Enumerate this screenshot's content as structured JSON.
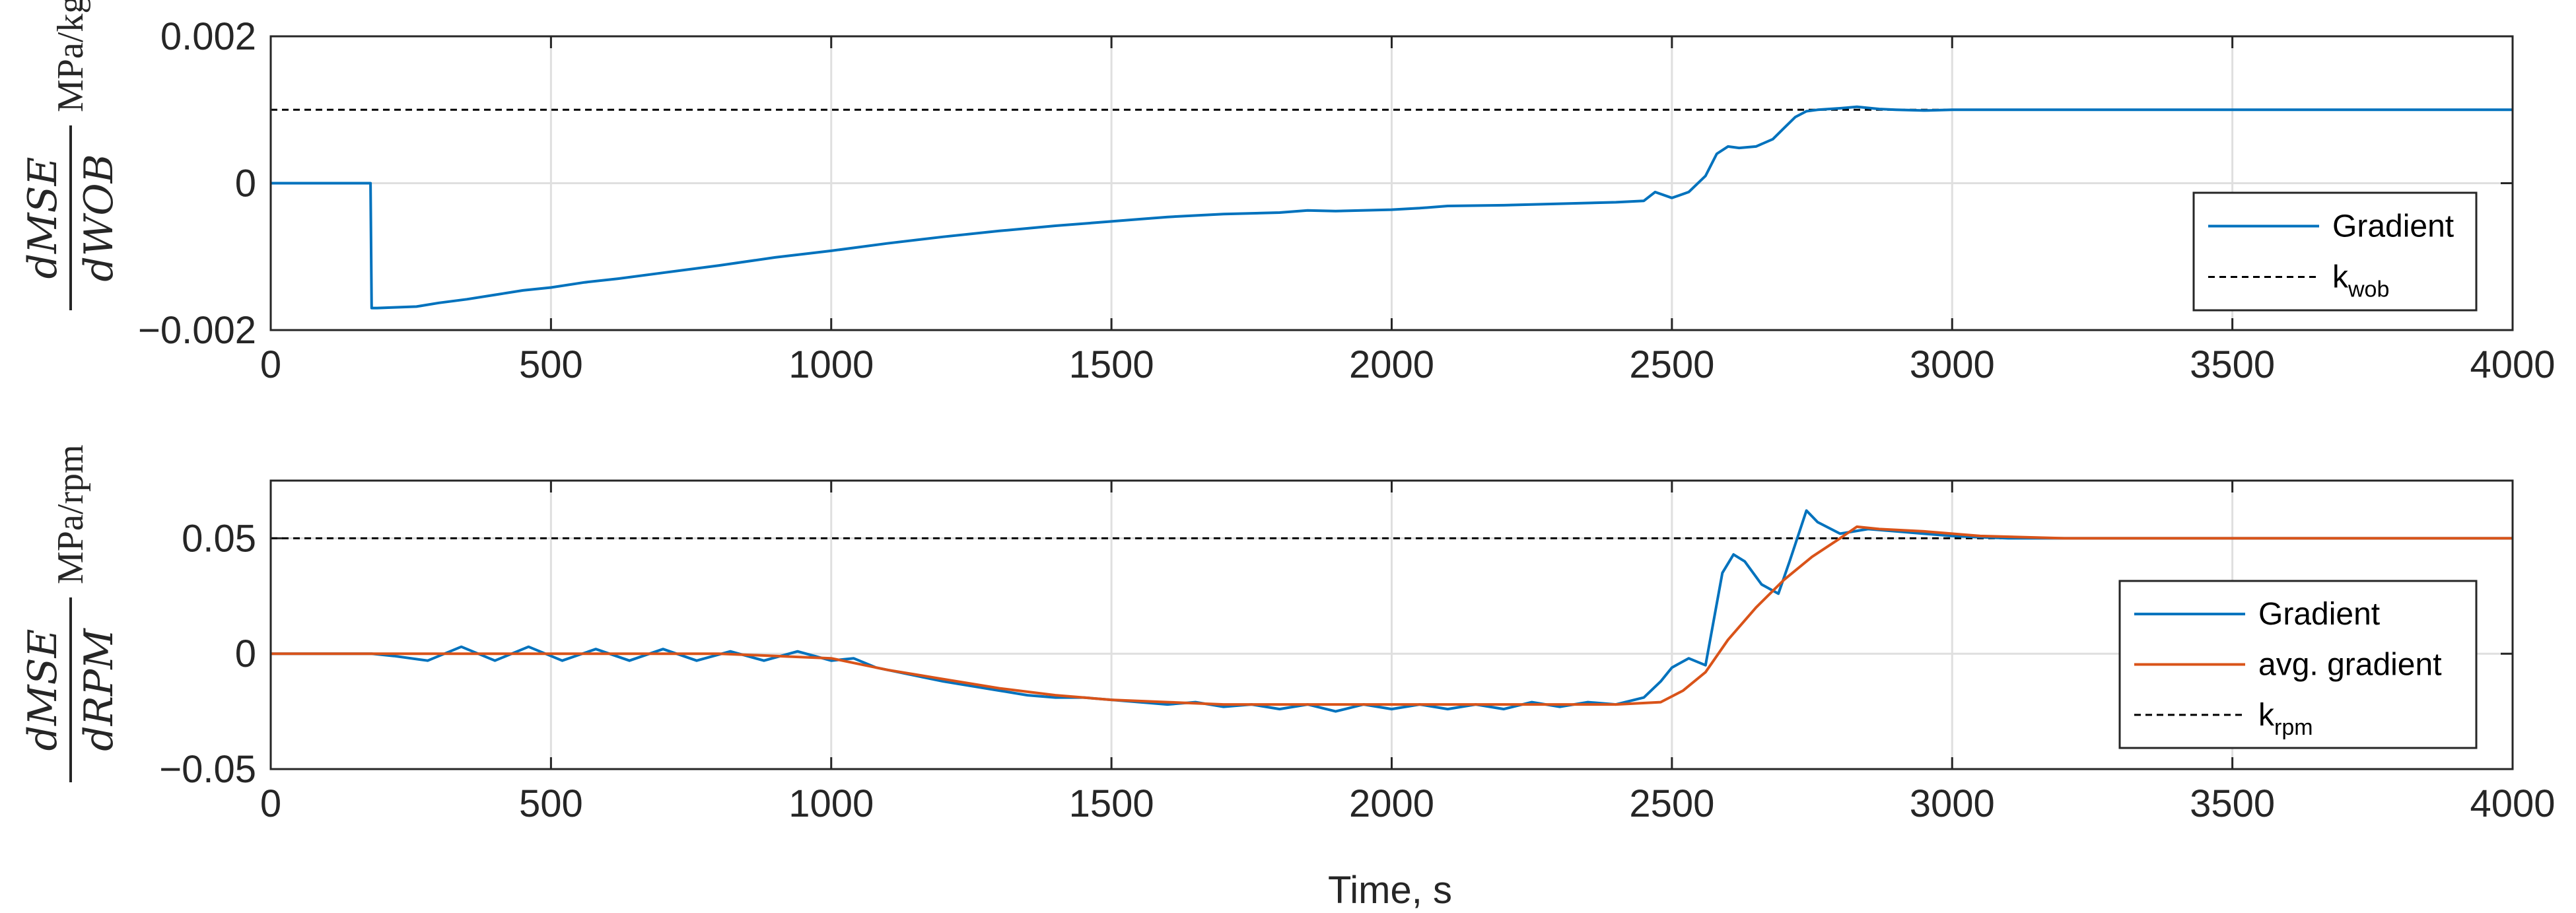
{
  "chart_data": [
    {
      "type": "line",
      "ylabel": {
        "numerator": "dMSE",
        "denominator": "dWOB",
        "unit": "MPa/kg"
      },
      "xlim": [
        0,
        4000
      ],
      "ylim": [
        -0.002,
        0.002
      ],
      "xticks": [
        "0",
        "500",
        "1000",
        "1500",
        "2000",
        "2500",
        "3000",
        "3500",
        "4000"
      ],
      "yticks": [
        "−0.002",
        "0",
        "0.002"
      ],
      "grid": true,
      "legend_position": "bottom-right",
      "series": [
        {
          "name": "Gradient",
          "color": "#0072BD",
          "style": "solid",
          "x": [
            0,
            178,
            180,
            190,
            260,
            300,
            350,
            400,
            450,
            500,
            560,
            620,
            700,
            800,
            900,
            1000,
            1100,
            1200,
            1300,
            1400,
            1500,
            1550,
            1600,
            1700,
            1800,
            1850,
            1900,
            2000,
            2050,
            2100,
            2200,
            2300,
            2400,
            2450,
            2470,
            2500,
            2530,
            2560,
            2580,
            2600,
            2620,
            2650,
            2680,
            2700,
            2720,
            2740,
            2760,
            2800,
            2830,
            2870,
            2900,
            2950,
            3000,
            3500,
            4000
          ],
          "y": [
            0,
            0,
            -0.0017,
            -0.0017,
            -0.00168,
            -0.00163,
            -0.00158,
            -0.00152,
            -0.00146,
            -0.00142,
            -0.00135,
            -0.0013,
            -0.00122,
            -0.00112,
            -0.00101,
            -0.00092,
            -0.00082,
            -0.00073,
            -0.00065,
            -0.00058,
            -0.00052,
            -0.00049,
            -0.00046,
            -0.00042,
            -0.0004,
            -0.00037,
            -0.00038,
            -0.00036,
            -0.00034,
            -0.00031,
            -0.0003,
            -0.00028,
            -0.00026,
            -0.00024,
            -0.00012,
            -0.0002,
            -0.00012,
            0.0001,
            0.0004,
            0.0005,
            0.00048,
            0.0005,
            0.0006,
            0.00075,
            0.0009,
            0.00098,
            0.001,
            0.00102,
            0.00104,
            0.00101,
            0.001,
            0.00099,
            0.001,
            0.001,
            0.001
          ]
        },
        {
          "name": "k",
          "subscript": "wob",
          "color": "#000000",
          "style": "dashed",
          "x": [
            0,
            4000
          ],
          "y": [
            0.001,
            0.001
          ]
        }
      ]
    },
    {
      "type": "line",
      "xlabel": "Time, s",
      "ylabel": {
        "numerator": "dMSE",
        "denominator": "dRPM",
        "unit": "MPa/rpm"
      },
      "xlim": [
        0,
        4000
      ],
      "ylim": [
        -0.05,
        0.075
      ],
      "xticks": [
        "0",
        "500",
        "1000",
        "1500",
        "2000",
        "2500",
        "3000",
        "3500",
        "4000"
      ],
      "yticks": [
        "−0.05",
        "0",
        "0.05"
      ],
      "grid": true,
      "legend_position": "bottom-right",
      "series": [
        {
          "name": "Gradient",
          "color": "#0072BD",
          "style": "solid",
          "x": [
            0,
            180,
            220,
            280,
            340,
            400,
            460,
            520,
            580,
            640,
            700,
            760,
            820,
            880,
            940,
            1000,
            1040,
            1080,
            1120,
            1160,
            1200,
            1250,
            1300,
            1350,
            1400,
            1450,
            1500,
            1550,
            1600,
            1650,
            1700,
            1750,
            1800,
            1850,
            1900,
            1950,
            2000,
            2050,
            2100,
            2150,
            2200,
            2250,
            2300,
            2350,
            2400,
            2450,
            2480,
            2500,
            2530,
            2560,
            2590,
            2610,
            2630,
            2660,
            2690,
            2710,
            2740,
            2760,
            2800,
            2850,
            2900,
            3000,
            3100,
            3500,
            4000
          ],
          "y": [
            0,
            0,
            -0.001,
            -0.003,
            0.003,
            -0.003,
            0.003,
            -0.003,
            0.002,
            -0.003,
            0.002,
            -0.003,
            0.001,
            -0.003,
            0.001,
            -0.003,
            -0.002,
            -0.006,
            -0.008,
            -0.01,
            -0.012,
            -0.014,
            -0.016,
            -0.018,
            -0.019,
            -0.019,
            -0.02,
            -0.021,
            -0.022,
            -0.021,
            -0.023,
            -0.022,
            -0.024,
            -0.022,
            -0.025,
            -0.022,
            -0.024,
            -0.022,
            -0.024,
            -0.022,
            -0.024,
            -0.021,
            -0.023,
            -0.021,
            -0.022,
            -0.019,
            -0.012,
            -0.006,
            -0.002,
            -0.005,
            0.035,
            0.043,
            0.04,
            0.03,
            0.026,
            0.04,
            0.062,
            0.057,
            0.052,
            0.054,
            0.053,
            0.051,
            0.05,
            0.05,
            0.05
          ]
        },
        {
          "name": "avg. gradient",
          "color": "#D95319",
          "style": "solid",
          "x": [
            0,
            800,
            1000,
            1100,
            1200,
            1300,
            1400,
            1500,
            1600,
            1700,
            1800,
            1900,
            2000,
            2100,
            2200,
            2300,
            2400,
            2480,
            2520,
            2560,
            2600,
            2650,
            2700,
            2750,
            2800,
            2830,
            2870,
            2950,
            3050,
            3200,
            3500,
            4000
          ],
          "y": [
            0,
            0,
            -0.002,
            -0.007,
            -0.011,
            -0.015,
            -0.018,
            -0.02,
            -0.021,
            -0.022,
            -0.022,
            -0.022,
            -0.022,
            -0.022,
            -0.022,
            -0.022,
            -0.022,
            -0.021,
            -0.016,
            -0.008,
            0.006,
            0.02,
            0.032,
            0.042,
            0.05,
            0.055,
            0.054,
            0.053,
            0.051,
            0.05,
            0.05,
            0.05
          ]
        },
        {
          "name": "k",
          "subscript": "rpm",
          "color": "#000000",
          "style": "dashed",
          "x": [
            0,
            4000
          ],
          "y": [
            0.05,
            0.05
          ]
        }
      ]
    }
  ]
}
